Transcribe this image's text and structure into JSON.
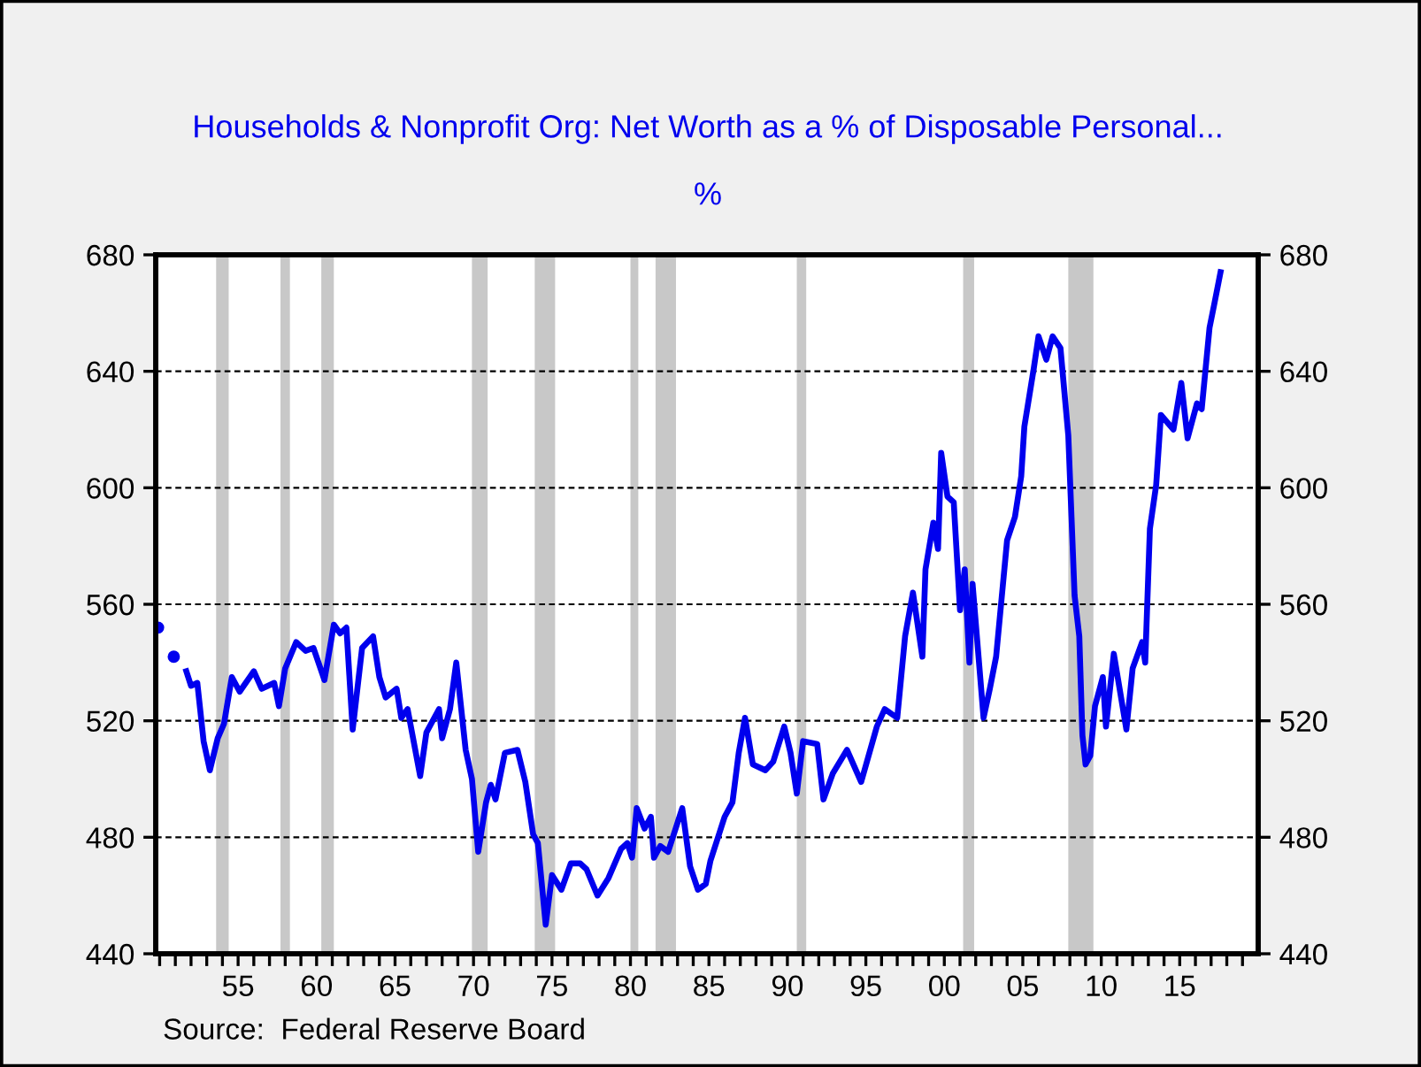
{
  "chart_data": {
    "type": "line",
    "title": "Households & Nonprofit Org: Net Worth as a % of Disposable Personal...",
    "subtitle": "%",
    "x": [
      1949.9,
      1950.4,
      1950.9,
      1951.3,
      1951.7,
      1952.0,
      1952.4,
      1952.8,
      1953.2,
      1953.7,
      1954.1,
      1954.6,
      1955.1,
      1956.0,
      1956.5,
      1957.3,
      1957.6,
      1958.0,
      1958.7,
      1959.3,
      1959.8,
      1960.5,
      1961.1,
      1961.5,
      1961.9,
      1962.3,
      1962.9,
      1963.6,
      1964.0,
      1964.4,
      1965.1,
      1965.4,
      1965.8,
      1966.6,
      1967.0,
      1967.8,
      1968.0,
      1968.5,
      1968.9,
      1969.5,
      1969.9,
      1970.3,
      1970.8,
      1971.1,
      1971.4,
      1972.0,
      1972.8,
      1973.3,
      1973.8,
      1974.1,
      1974.6,
      1975.0,
      1975.6,
      1976.2,
      1976.8,
      1977.2,
      1977.9,
      1978.6,
      1979.4,
      1979.8,
      1980.1,
      1980.4,
      1980.9,
      1981.3,
      1981.5,
      1981.9,
      1982.4,
      1983.3,
      1983.8,
      1984.3,
      1984.8,
      1985.1,
      1986.0,
      1986.5,
      1986.9,
      1987.3,
      1987.8,
      1988.6,
      1989.1,
      1989.8,
      1990.2,
      1990.6,
      1991.0,
      1991.9,
      1992.3,
      1992.9,
      1993.8,
      1994.7,
      1995.7,
      1996.2,
      1997.0,
      1997.5,
      1998.0,
      1998.6,
      1998.8,
      1999.3,
      1999.6,
      1999.8,
      2000.2,
      2000.6,
      2001.0,
      2001.3,
      2001.6,
      2001.8,
      2002.5,
      2002.9,
      2003.3,
      2004.0,
      2004.5,
      2004.9,
      2005.1,
      2005.7,
      2006.0,
      2006.5,
      2006.9,
      2007.4,
      2007.9,
      2008.3,
      2008.6,
      2008.8,
      2009.0,
      2009.3,
      2009.6,
      2010.1,
      2010.3,
      2010.8,
      2011.6,
      2012.0,
      2012.6,
      2012.8,
      2013.1,
      2013.5,
      2013.8,
      2014.6,
      2015.1,
      2015.5,
      2016.1,
      2016.4,
      2016.9,
      2017.2,
      2017.6
    ],
    "series": [
      {
        "color": "#0000ee",
        "values": [
          552,
          null,
          542,
          null,
          537,
          532,
          533,
          513,
          503,
          514,
          519,
          535,
          530,
          537,
          531,
          533,
          525,
          538,
          547,
          544,
          545,
          534,
          553,
          550,
          552,
          517,
          545,
          549,
          535,
          528,
          531,
          521,
          524,
          501,
          516,
          524,
          514,
          524,
          540,
          510,
          500,
          475,
          492,
          498,
          493,
          509,
          510,
          499,
          481,
          478,
          450,
          467,
          462,
          471,
          471,
          469,
          460,
          466,
          476,
          478,
          473,
          490,
          483,
          487,
          473,
          477,
          475,
          490,
          470,
          462,
          464,
          472,
          487,
          492,
          509,
          521,
          505,
          503,
          506,
          518,
          509,
          495,
          513,
          512,
          493,
          502,
          510,
          499,
          518,
          524,
          521,
          549,
          564,
          542,
          572,
          588,
          579,
          612,
          597,
          595,
          558,
          572,
          540,
          567,
          521,
          531,
          542,
          582,
          590,
          604,
          621,
          641,
          652,
          644,
          652,
          648,
          618,
          563,
          549,
          515,
          505,
          508,
          525,
          535,
          518,
          543,
          517,
          538,
          547,
          540,
          586,
          601,
          625,
          620,
          636,
          617,
          629,
          627,
          655,
          663,
          674
        ]
      }
    ],
    "xlim": [
      1949.75,
      2020
    ],
    "xticks": [
      {
        "value": 1950,
        "label": null
      },
      {
        "value": 1951,
        "label": null
      },
      {
        "value": 1952,
        "label": null
      },
      {
        "value": 1953,
        "label": null
      },
      {
        "value": 1954,
        "label": null
      },
      {
        "value": 1955,
        "label": "55"
      },
      {
        "value": 1956,
        "label": null
      },
      {
        "value": 1957,
        "label": null
      },
      {
        "value": 1958,
        "label": null
      },
      {
        "value": 1959,
        "label": null
      },
      {
        "value": 1960,
        "label": "60"
      },
      {
        "value": 1961,
        "label": null
      },
      {
        "value": 1962,
        "label": null
      },
      {
        "value": 1963,
        "label": null
      },
      {
        "value": 1964,
        "label": null
      },
      {
        "value": 1965,
        "label": "65"
      },
      {
        "value": 1966,
        "label": null
      },
      {
        "value": 1967,
        "label": null
      },
      {
        "value": 1968,
        "label": null
      },
      {
        "value": 1969,
        "label": null
      },
      {
        "value": 1970,
        "label": "70"
      },
      {
        "value": 1971,
        "label": null
      },
      {
        "value": 1972,
        "label": null
      },
      {
        "value": 1973,
        "label": null
      },
      {
        "value": 1974,
        "label": null
      },
      {
        "value": 1975,
        "label": "75"
      },
      {
        "value": 1976,
        "label": null
      },
      {
        "value": 1977,
        "label": null
      },
      {
        "value": 1978,
        "label": null
      },
      {
        "value": 1979,
        "label": null
      },
      {
        "value": 1980,
        "label": "80"
      },
      {
        "value": 1981,
        "label": null
      },
      {
        "value": 1982,
        "label": null
      },
      {
        "value": 1983,
        "label": null
      },
      {
        "value": 1984,
        "label": null
      },
      {
        "value": 1985,
        "label": "85"
      },
      {
        "value": 1986,
        "label": null
      },
      {
        "value": 1987,
        "label": null
      },
      {
        "value": 1988,
        "label": null
      },
      {
        "value": 1989,
        "label": null
      },
      {
        "value": 1990,
        "label": "90"
      },
      {
        "value": 1991,
        "label": null
      },
      {
        "value": 1992,
        "label": null
      },
      {
        "value": 1993,
        "label": null
      },
      {
        "value": 1994,
        "label": null
      },
      {
        "value": 1995,
        "label": "95"
      },
      {
        "value": 1996,
        "label": null
      },
      {
        "value": 1997,
        "label": null
      },
      {
        "value": 1998,
        "label": null
      },
      {
        "value": 1999,
        "label": null
      },
      {
        "value": 2000,
        "label": "00"
      },
      {
        "value": 2001,
        "label": null
      },
      {
        "value": 2002,
        "label": null
      },
      {
        "value": 2003,
        "label": null
      },
      {
        "value": 2004,
        "label": null
      },
      {
        "value": 2005,
        "label": "05"
      },
      {
        "value": 2006,
        "label": null
      },
      {
        "value": 2007,
        "label": null
      },
      {
        "value": 2008,
        "label": null
      },
      {
        "value": 2009,
        "label": null
      },
      {
        "value": 2010,
        "label": "10"
      },
      {
        "value": 2011,
        "label": null
      },
      {
        "value": 2012,
        "label": null
      },
      {
        "value": 2013,
        "label": null
      },
      {
        "value": 2014,
        "label": null
      },
      {
        "value": 2015,
        "label": "15"
      },
      {
        "value": 2016,
        "label": null
      },
      {
        "value": 2017,
        "label": null
      },
      {
        "value": 2018,
        "label": null
      },
      {
        "value": 2019,
        "label": null
      }
    ],
    "ylim": [
      440,
      680
    ],
    "yticks": [
      440,
      480,
      520,
      560,
      600,
      640,
      680
    ],
    "y2lim": [
      440,
      680
    ],
    "y2ticks": [
      440,
      480,
      520,
      560,
      600,
      640,
      680
    ],
    "grid": "y",
    "line_style": "solid",
    "bands": [
      {
        "axis": "x",
        "from": 1953.6,
        "to": 1954.4,
        "color": "#c8c8c8"
      },
      {
        "axis": "x",
        "from": 1957.7,
        "to": 1958.3,
        "color": "#c8c8c8"
      },
      {
        "axis": "x",
        "from": 1960.3,
        "to": 1961.1,
        "color": "#c8c8c8"
      },
      {
        "axis": "x",
        "from": 1969.9,
        "to": 1970.9,
        "color": "#c8c8c8"
      },
      {
        "axis": "x",
        "from": 1973.9,
        "to": 1975.2,
        "color": "#c8c8c8"
      },
      {
        "axis": "x",
        "from": 1980.0,
        "to": 1980.5,
        "color": "#c8c8c8"
      },
      {
        "axis": "x",
        "from": 1981.6,
        "to": 1982.9,
        "color": "#c8c8c8"
      },
      {
        "axis": "x",
        "from": 1990.6,
        "to": 1991.2,
        "color": "#c8c8c8"
      },
      {
        "axis": "x",
        "from": 2001.2,
        "to": 2001.9,
        "color": "#c8c8c8"
      },
      {
        "axis": "x",
        "from": 2007.9,
        "to": 2009.5,
        "color": "#c8c8c8"
      }
    ],
    "annotations": [
      "Source:  Federal Reserve Board"
    ]
  }
}
